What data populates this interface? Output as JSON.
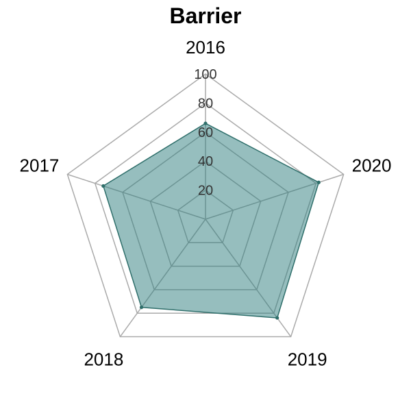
{
  "chart_data": {
    "type": "radar",
    "title": "Barrier",
    "categories": [
      "2016",
      "2020",
      "2019",
      "2018",
      "2017"
    ],
    "series": [
      {
        "values": [
          66,
          82,
          84,
          75,
          74
        ]
      }
    ],
    "rlim": [
      0,
      100
    ],
    "r_ticks": [
      20,
      40,
      60,
      80,
      100
    ],
    "r_tick_labels": [
      "20",
      "40",
      "60",
      "80",
      "100"
    ],
    "grid": true,
    "colors": {
      "fill": "#2e7d7d",
      "stroke": "#2e6e6a",
      "grid": "#aaaaaa"
    }
  }
}
